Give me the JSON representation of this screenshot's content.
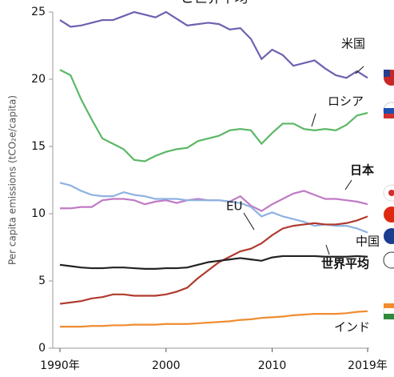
{
  "chart_data": {
    "type": "line",
    "title": "と世界平均",
    "y_label": "Per capita emissions (tCO₂e/capita)",
    "x": [
      1990,
      1991,
      1992,
      1993,
      1994,
      1995,
      1996,
      1997,
      1998,
      1999,
      2000,
      2001,
      2002,
      2003,
      2004,
      2005,
      2006,
      2007,
      2008,
      2009,
      2010,
      2011,
      2012,
      2013,
      2014,
      2015,
      2016,
      2017,
      2018,
      2019
    ],
    "xlim": [
      1990,
      2019
    ],
    "xticks": [
      {
        "value": 1990,
        "label": "1990年"
      },
      2000,
      2010,
      {
        "value": 2019,
        "label": "2019年"
      }
    ],
    "ylim": [
      0,
      25
    ],
    "yticks": [
      0,
      5,
      10,
      15,
      20,
      25
    ],
    "series": [
      {
        "name": "米国",
        "color": "#6b62b0",
        "values": [
          24.4,
          23.9,
          24.0,
          24.2,
          24.4,
          24.4,
          24.7,
          25.0,
          24.8,
          24.6,
          25.0,
          24.5,
          24.0,
          24.1,
          24.2,
          24.1,
          23.7,
          23.8,
          23.0,
          21.5,
          22.2,
          21.8,
          21.0,
          21.2,
          21.4,
          20.8,
          20.3,
          20.1,
          20.6,
          20.1
        ]
      },
      {
        "name": "ロシア",
        "color": "#5bb866",
        "values": [
          20.7,
          20.3,
          18.5,
          17.0,
          15.6,
          15.2,
          14.8,
          14.0,
          13.9,
          14.3,
          14.6,
          14.8,
          14.9,
          15.4,
          15.6,
          15.8,
          16.2,
          16.3,
          16.2,
          15.2,
          16.0,
          16.7,
          16.7,
          16.3,
          16.2,
          16.3,
          16.2,
          16.6,
          17.3,
          17.5
        ]
      },
      {
        "name": "日本",
        "color": "#c07ac4",
        "values": [
          10.4,
          10.4,
          10.5,
          10.5,
          11.0,
          11.1,
          11.1,
          11.0,
          10.7,
          10.9,
          11.0,
          10.8,
          11.0,
          11.1,
          11.0,
          11.0,
          10.9,
          11.3,
          10.6,
          10.2,
          10.7,
          11.1,
          11.5,
          11.7,
          11.4,
          11.1,
          11.1,
          11.0,
          10.9,
          10.7
        ]
      },
      {
        "name": "EU",
        "color": "#8eb2e2",
        "values": [
          12.3,
          12.1,
          11.7,
          11.4,
          11.3,
          11.3,
          11.6,
          11.4,
          11.3,
          11.1,
          11.1,
          11.1,
          11.0,
          11.0,
          11.0,
          11.0,
          10.9,
          10.8,
          10.5,
          9.8,
          10.1,
          9.8,
          9.6,
          9.4,
          9.1,
          9.2,
          9.1,
          9.1,
          8.9,
          8.6
        ]
      },
      {
        "name": "中国",
        "color": "#b03a2e",
        "values": [
          3.3,
          3.4,
          3.5,
          3.7,
          3.8,
          4.0,
          4.0,
          3.9,
          3.9,
          3.9,
          4.0,
          4.2,
          4.5,
          5.2,
          5.8,
          6.4,
          6.8,
          7.2,
          7.4,
          7.8,
          8.4,
          8.9,
          9.1,
          9.2,
          9.3,
          9.2,
          9.2,
          9.3,
          9.5,
          9.8
        ]
      },
      {
        "name": "世界平均",
        "color": "#222222",
        "values": [
          6.2,
          6.1,
          6.0,
          5.95,
          5.95,
          6.0,
          6.0,
          5.95,
          5.9,
          5.9,
          5.95,
          5.95,
          6.0,
          6.2,
          6.4,
          6.5,
          6.6,
          6.7,
          6.6,
          6.5,
          6.75,
          6.85,
          6.85,
          6.85,
          6.85,
          6.8,
          6.8,
          6.8,
          6.85,
          6.8
        ]
      },
      {
        "name": "インド",
        "color": "#f08c30",
        "values": [
          1.6,
          1.6,
          1.6,
          1.65,
          1.65,
          1.7,
          1.7,
          1.75,
          1.75,
          1.75,
          1.8,
          1.8,
          1.8,
          1.85,
          1.9,
          1.95,
          2.0,
          2.1,
          2.15,
          2.25,
          2.3,
          2.35,
          2.45,
          2.5,
          2.55,
          2.55,
          2.55,
          2.6,
          2.7,
          2.75
        ]
      }
    ]
  }
}
